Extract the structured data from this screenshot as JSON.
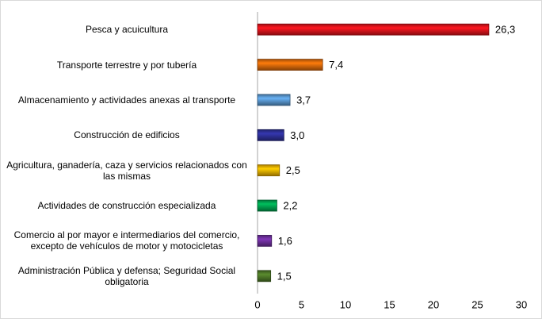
{
  "chart_data": {
    "type": "bar",
    "orientation": "horizontal",
    "categories": [
      "Pesca y acuicultura",
      "Transporte terrestre y por tubería",
      "Almacenamiento y actividades anexas al transporte",
      "Construcción de edificios",
      "Agricultura, ganadería, caza y servicios relacionados con las mismas",
      "Actividades de construcción especializada",
      "Comercio al por mayor e intermediarios del comercio, excepto de vehículos de motor y motocicletas",
      "Administración Pública y defensa; Seguridad Social obligatoria"
    ],
    "values": [
      26.3,
      7.4,
      3.7,
      3.0,
      2.5,
      2.2,
      1.6,
      1.5
    ],
    "value_labels": [
      "26,3",
      "7,4",
      "3,7",
      "3,0",
      "2,5",
      "2,2",
      "1,6",
      "1,5"
    ],
    "colors": [
      "#e3141c",
      "#e36c0a",
      "#5b9bd5",
      "#2e3199",
      "#f5b400",
      "#00a651",
      "#7030a0",
      "#4f7a28"
    ],
    "xlim": [
      0,
      30
    ],
    "xticks": [
      0,
      5,
      10,
      15,
      20,
      25,
      30
    ],
    "grid": false
  }
}
